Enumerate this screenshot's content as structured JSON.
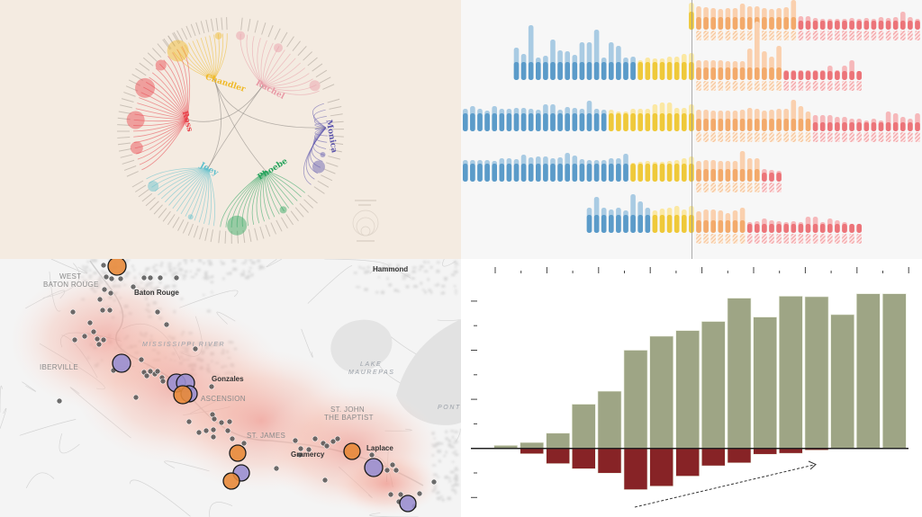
{
  "network": {
    "background": "#f4ebe1",
    "hubs": [
      {
        "name": "Chandler",
        "color": "#efb928",
        "leaves": 14,
        "arc": [
          -126,
          -92
        ]
      },
      {
        "name": "Rachel",
        "color": "#e89aa6",
        "leaves": 16,
        "arc": [
          -84,
          -24
        ]
      },
      {
        "name": "Monica",
        "color": "#5e57ad",
        "leaves": 14,
        "arc": [
          -16,
          34
        ]
      },
      {
        "name": "Phoebe",
        "color": "#27a35c",
        "leaves": 18,
        "arc": [
          40,
          96
        ]
      },
      {
        "name": "Joey",
        "color": "#5fbfcc",
        "leaves": 18,
        "arc": [
          100,
          150
        ]
      },
      {
        "name": "Ross",
        "color": "#e8434c",
        "leaves": 26,
        "arc": [
          156,
          240
        ]
      }
    ]
  },
  "chart_data": [
    {
      "type": "bar",
      "title": "",
      "description_of_marks": "rows of stacked bars; solid part plus lighter extension; hatched projection below",
      "colors": {
        "blue": "#5b9bc9",
        "blue_light": "#a9cbe3",
        "yellow": "#efc93a",
        "yellow_light": "#fbe8a3",
        "orange": "#f3aa6b",
        "orange_light": "#fad0ae",
        "red": "#ec7479",
        "red_light": "#f6b8ba"
      },
      "rows": [
        {
          "start": 31,
          "segments": [
            {
              "color": "yellow",
              "extras": [
                10
              ]
            },
            {
              "color": "orange",
              "extras": [
                6,
                5,
                4,
                3,
                4,
                4,
                9,
                6,
                6,
                4,
                3,
                4,
                5,
                13
              ]
            },
            {
              "color": "red",
              "extras": [
                5,
                5,
                3,
                2,
                2,
                2,
                2,
                3,
                2,
                3,
                2,
                4,
                3,
                4,
                10,
                4,
                2,
                5
              ]
            }
          ]
        },
        {
          "start": 7,
          "segments": [
            {
              "color": "blue",
              "extras": [
                16,
                9,
                41,
                5,
                7,
                25,
                13,
                12,
                8,
                22,
                22,
                36,
                5,
                22,
                18,
                5,
                6
              ]
            },
            {
              "color": "yellow",
              "extras": [
                2,
                5,
                4,
                4,
                6,
                6,
                9,
                10
              ]
            },
            {
              "color": "orange",
              "extras": [
                2,
                2,
                2,
                2,
                1,
                1,
                1,
                15,
                45,
                12,
                6,
                18
              ]
            },
            {
              "color": "red",
              "extras": [
                1,
                1,
                1,
                1,
                1,
                1,
                6,
                1,
                6,
                12,
                0
              ]
            }
          ]
        },
        {
          "start": 0,
          "segments": [
            {
              "color": "blue",
              "extras": [
                5,
                8,
                5,
                3,
                8,
                5,
                5,
                6,
                6,
                5,
                4,
                10,
                10,
                4,
                7,
                6,
                5,
                14,
                5,
                4
              ]
            },
            {
              "color": "yellow",
              "extras": [
                4,
                2,
                2,
                5,
                5,
                5,
                10,
                12,
                12,
                6,
                6,
                10
              ]
            },
            {
              "color": "orange",
              "extras": [
                4,
                4,
                3,
                3,
                3,
                3,
                4,
                6,
                5,
                3,
                4,
                5,
                5,
                15,
                8,
                2
              ]
            },
            {
              "color": "red",
              "extras": [
                8,
                8,
                8,
                6,
                6,
                4,
                4,
                2,
                4,
                2,
                12,
                10,
                6,
                4,
                10,
                16
              ]
            }
          ]
        },
        {
          "start": 0,
          "segments": [
            {
              "color": "blue",
              "extras": [
                4,
                4,
                4,
                4,
                3,
                6,
                6,
                5,
                10,
                7,
                8,
                8,
                6,
                7,
                12,
                9,
                5,
                4,
                4,
                4,
                6,
                6,
                11
              ]
            },
            {
              "color": "yellow",
              "extras": [
                1,
                2,
                3,
                2,
                2,
                3,
                4,
                6,
                8
              ]
            },
            {
              "color": "orange",
              "extras": [
                3,
                4,
                4,
                3,
                3,
                3,
                14,
                6,
                6
              ]
            },
            {
              "color": "red",
              "extras": [
                4,
                3,
                2
              ]
            }
          ]
        },
        {
          "start": 17,
          "segments": [
            {
              "color": "blue",
              "extras": [
                8,
                20,
                8,
                6,
                8,
                5,
                23,
                15,
                8
              ]
            },
            {
              "color": "yellow",
              "extras": [
                5,
                7,
                8,
                10,
                6,
                10
              ]
            },
            {
              "color": "orange",
              "extras": [
                4,
                6,
                6,
                5,
                2,
                5,
                8
              ]
            },
            {
              "color": "red",
              "extras": [
                2,
                3,
                6,
                4,
                3,
                2,
                3,
                2,
                8,
                8,
                2,
                6,
                4,
                2,
                0,
                0
              ]
            }
          ]
        }
      ]
    },
    {
      "type": "bar",
      "title": "",
      "xlabel": "",
      "ylabel": "",
      "ylim": [
        -3,
        7
      ],
      "grid": false,
      "series": [
        {
          "color": "#9ea585",
          "values": [
            0.12,
            0.24,
            0.62,
            1.8,
            2.33,
            4.0,
            4.57,
            4.8,
            5.17,
            6.12,
            5.35,
            6.2,
            6.18,
            5.45,
            6.3,
            6.3
          ]
        },
        {
          "color": "#872326",
          "values": [
            0,
            -0.22,
            -0.62,
            -0.83,
            -1.01,
            -1.68,
            -1.54,
            -1.13,
            -0.71,
            -0.59,
            -0.24,
            -0.2,
            -0.07,
            0,
            0,
            0
          ]
        }
      ],
      "annotation": "dashed trend arrow"
    }
  ],
  "map": {
    "labels": {
      "west_baton_rouge_1": "WEST",
      "west_baton_rouge_2": "BATON ROUGE",
      "baton_rouge": "Baton Rouge",
      "hammond": "Hammond",
      "river": "MISSISSIPPI RIVER",
      "iberville": "IBERVILLE",
      "gonzales": "Gonzales",
      "ascension": "ASCENSION",
      "lake_1": "LAKE",
      "lake_2": "MAUREPAS",
      "st_john_1": "ST. JOHN",
      "st_john_2": "THE BAPTIST",
      "st_james": "ST. JAMES",
      "gramercy": "Gramercy",
      "laplace": "Laplace",
      "pont": "PONT"
    },
    "colors": {
      "orange": "#e8893a",
      "purple": "#9a8fd0",
      "dot": "#555555",
      "heat": "#f08a7a"
    }
  }
}
